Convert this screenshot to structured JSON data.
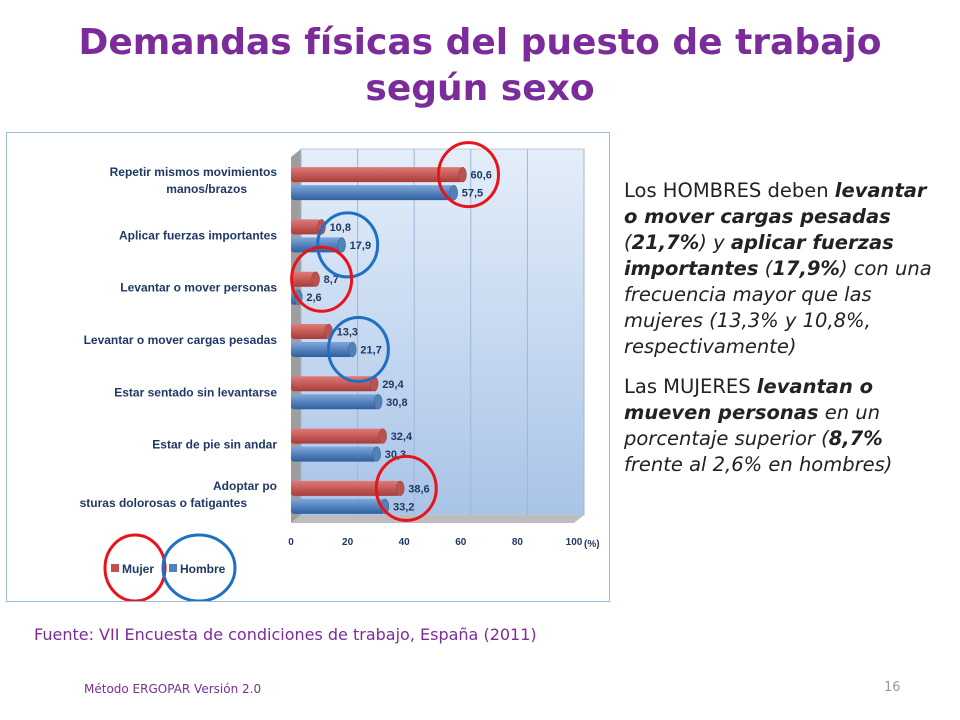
{
  "slide": {
    "title": "Demandas físicas del puesto de trabajo según sexo",
    "source": "Fuente: VII Encuesta de condiciones de trabajo, España (2011)",
    "footer": "Método ERGOPAR Versión 2.0",
    "page_number": "16"
  },
  "side_text": {
    "p1": {
      "a": "Los HOMBRES deben ",
      "b": "levantar o mover cargas pesadas",
      "c": " (",
      "d": "21,7%",
      "e": ") y ",
      "f": "aplicar fuerzas importantes",
      "g": " (",
      "h": "17,9%",
      "i": ") con una frecuencia mayor que las mujeres (13,3% y 10,8%, respectivamente)"
    },
    "p2": {
      "a": "Las MUJERES ",
      "b": "levantan o mueven personas",
      "c": " en un porcentaje superior (",
      "d": "8,7%",
      "e": " frente al 2,6% en hombres)"
    }
  },
  "colors": {
    "mujer": "#C0504D",
    "hombre": "#4F81BD",
    "circle_red": "#E8141C",
    "circle_blue": "#1F6FC5",
    "wall": "#C5D9F1"
  },
  "chart_data": {
    "type": "bar",
    "orientation": "horizontal",
    "categories": [
      "Repetir  mismos movimientos manos/brazos",
      "Aplicar fuerzas importantes",
      "Levantar o mover personas",
      "Levantar o mover cargas pesadas",
      "Estar sentado sin levantarse",
      "Estar de pie sin andar",
      "Adoptar posturas dolorosas o fatigantes"
    ],
    "series": [
      {
        "name": "Mujer",
        "values": [
          60.6,
          10.8,
          8.7,
          13.3,
          29.4,
          32.4,
          38.6
        ],
        "labels": [
          "60,6",
          "10,8",
          "8,7",
          "13,3",
          "29,4",
          "32,4",
          "38,6"
        ]
      },
      {
        "name": "Hombre",
        "values": [
          57.5,
          17.9,
          2.6,
          21.7,
          30.8,
          30.3,
          33.2
        ],
        "labels": [
          "57,5",
          "17,9",
          "2,6",
          "21,7",
          "30,8",
          "30,3",
          "33,2"
        ]
      }
    ],
    "xticks": [
      "0",
      "20",
      "40",
      "60",
      "80",
      "100"
    ],
    "xlim": [
      0,
      100
    ],
    "xlabel": "(%)",
    "legend": "bottom-left",
    "grid": true,
    "highlight_circles": [
      {
        "series": "Mujer",
        "category": "Repetir  mismos movimientos manos/brazos",
        "color": "red"
      },
      {
        "series": "Hombre",
        "category": "Aplicar fuerzas importantes",
        "color": "blue"
      },
      {
        "series": "Mujer",
        "category": "Levantar o mover personas",
        "color": "red"
      },
      {
        "series": "Hombre",
        "category": "Levantar o mover cargas pesadas",
        "color": "blue"
      },
      {
        "series": "Mujer",
        "category": "Adoptar posturas dolorosas o fatigantes",
        "color": "red"
      },
      {
        "legend": "Mujer",
        "color": "red"
      },
      {
        "legend": "Hombre",
        "color": "blue"
      }
    ]
  }
}
